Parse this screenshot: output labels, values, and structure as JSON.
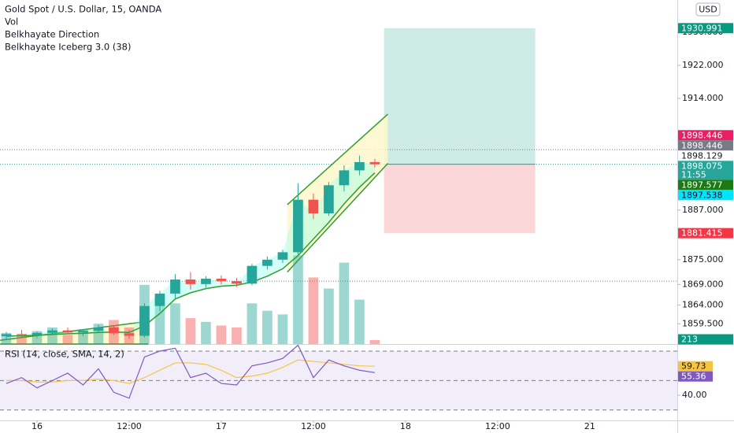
{
  "chart_data": [
    {
      "type": "candlestick",
      "title": "Gold Spot / U.S. Dollar, 15, OANDA",
      "indicators": [
        "Vol",
        "Belkhayate Direction",
        "Belkhayate Iceberg 3.0 (38)"
      ],
      "currency": "USD",
      "x": [
        -4,
        -2,
        0,
        2,
        4,
        6,
        8,
        10,
        12,
        14,
        16,
        18,
        20,
        22,
        24,
        26,
        28,
        30,
        32,
        34,
        36,
        38,
        40,
        42,
        44
      ],
      "open": [
        1856.5,
        1857,
        1856.8,
        1857.3,
        1857.9,
        1857.4,
        1857.8,
        1858.6,
        1857.2,
        1856.6,
        1863.8,
        1866.8,
        1870.2,
        1869.1,
        1870.4,
        1869.8,
        1869.2,
        1873.5,
        1875,
        1876.8,
        1889.5,
        1886.2,
        1893,
        1896.6,
        1898.6
      ],
      "high": [
        1857.5,
        1858,
        1857.6,
        1858.4,
        1858.6,
        1858.2,
        1859.2,
        1859,
        1858,
        1864.5,
        1867.5,
        1871.5,
        1872,
        1871,
        1871.2,
        1870.6,
        1874,
        1875.8,
        1877.4,
        1893.5,
        1891,
        1893.8,
        1897.8,
        1900.2,
        1899.4
      ],
      "low": [
        1855.8,
        1856.3,
        1856,
        1856.8,
        1857,
        1856.5,
        1857.2,
        1856.8,
        1855.8,
        1856.2,
        1862.5,
        1865.5,
        1867.8,
        1868.2,
        1869,
        1868.4,
        1868.8,
        1872.6,
        1874.2,
        1876.2,
        1884.8,
        1885.6,
        1891.5,
        1895.4,
        1897.3
      ],
      "close": [
        1857,
        1856.8,
        1857.3,
        1857.9,
        1857.4,
        1857.8,
        1858.6,
        1857.2,
        1856.6,
        1863.8,
        1866.8,
        1870.2,
        1869.1,
        1870.4,
        1869.8,
        1869.2,
        1873.5,
        1875,
        1876.8,
        1889.5,
        1886.2,
        1893,
        1896.6,
        1898.6,
        1898.075
      ],
      "countdown": "11:55",
      "up_color": "#26a69a",
      "down_color": "#ef5350",
      "volume": {
        "values": [
          600,
          500,
          700,
          900,
          500,
          800,
          1100,
          1300,
          900,
          3200,
          2600,
          2200,
          1400,
          1200,
          1000,
          900,
          2200,
          1800,
          1600,
          4800,
          3600,
          3000,
          4400,
          2400,
          213
        ],
        "vlim": [
          0,
          18600
        ],
        "color": "#089981"
      },
      "direction": {
        "color": "#2e9e2e",
        "fill": "#80ffee",
        "values": [
          1856.5,
          1856.6,
          1856.7,
          1856.9,
          1857.1,
          1857.2,
          1857.4,
          1857.5,
          1857.4,
          1859,
          1862,
          1865.5,
          1867,
          1868,
          1868.6,
          1868.8,
          1869.6,
          1871,
          1872.8,
          1876,
          1880,
          1884,
          1888.5,
          1892.5,
          1896
        ]
      },
      "channels": [
        {
          "upper": [
            [
              -4.8,
              1855.5
            ],
            [
              14.5,
              1860.1
            ]
          ],
          "lower": [
            [
              -4.8,
              1854.6
            ],
            [
              14.5,
              1854.6
            ]
          ]
        },
        {
          "upper": [
            [
              32.6,
              1888.3
            ],
            [
              45.7,
              1910.2
            ]
          ],
          "lower": [
            [
              32.6,
              1872
            ],
            [
              45.7,
              1898.3
            ]
          ]
        }
      ],
      "channel_color": "#2e9e2e",
      "channel_fill": "#fff7c8",
      "hlines": [
        1901.6,
        1869.8
      ],
      "position": {
        "target": 1930.991,
        "entry": 1898.075,
        "stop": 1881.415,
        "start": 45.2,
        "end": 64.9,
        "profit_color": "#089981",
        "loss_color": "#f23645"
      },
      "price_labels": [
        {
          "value": 1898.446,
          "color": "#e91e63"
        },
        {
          "value": 1898.446,
          "color": "#787b86"
        },
        {
          "value": 1898.129,
          "color": "#ffffff"
        },
        {
          "value": 1897.577,
          "color": "#1b7a12"
        },
        {
          "value": 1897.538,
          "color": "#00e5ff"
        }
      ],
      "xlim": [
        -4.82,
        83.4
      ],
      "xticks": [
        {
          "value": 0,
          "label": "16"
        },
        {
          "value": 12,
          "label": "12:00"
        },
        {
          "value": 24,
          "label": "17"
        },
        {
          "value": 36,
          "label": "12:00"
        },
        {
          "value": 48,
          "label": "18"
        },
        {
          "value": 60,
          "label": "12:00"
        },
        {
          "value": 72,
          "label": "21"
        }
      ],
      "ylim": [
        1854.6,
        1937.8
      ],
      "yticks": [
        {
          "value": 1930,
          "label": "1930.000"
        },
        {
          "value": 1922,
          "label": "1922.000"
        },
        {
          "value": 1914,
          "label": "1914.000"
        },
        {
          "value": 1887,
          "label": "1887.000"
        },
        {
          "value": 1875,
          "label": "1875.000"
        },
        {
          "value": 1869,
          "label": "1869.000"
        },
        {
          "value": 1864,
          "label": "1864.000"
        },
        {
          "value": 1859.5,
          "label": "1859.500"
        }
      ]
    },
    {
      "type": "line",
      "title": "RSI (14, close, SMA, 14, 2)",
      "series": [
        {
          "color": "#7e57c2",
          "values": [
            48,
            52,
            45,
            50,
            55,
            47,
            58,
            42,
            38,
            66,
            70,
            72,
            52,
            55,
            48,
            47,
            60,
            62,
            65,
            74,
            52,
            64,
            60,
            57,
            55.36
          ]
        },
        {
          "color": "#f5c542",
          "values": [
            50,
            50,
            49,
            49,
            50,
            50,
            51,
            50,
            48,
            52,
            57,
            62,
            62,
            61,
            57,
            52,
            53,
            55,
            59,
            64,
            63,
            62,
            61,
            60,
            59.73
          ]
        }
      ],
      "bands": [
        70,
        50,
        30
      ],
      "ylim": [
        22.9,
        73.2
      ],
      "yticks": [
        {
          "value": 40,
          "label": "40.00"
        }
      ]
    }
  ]
}
